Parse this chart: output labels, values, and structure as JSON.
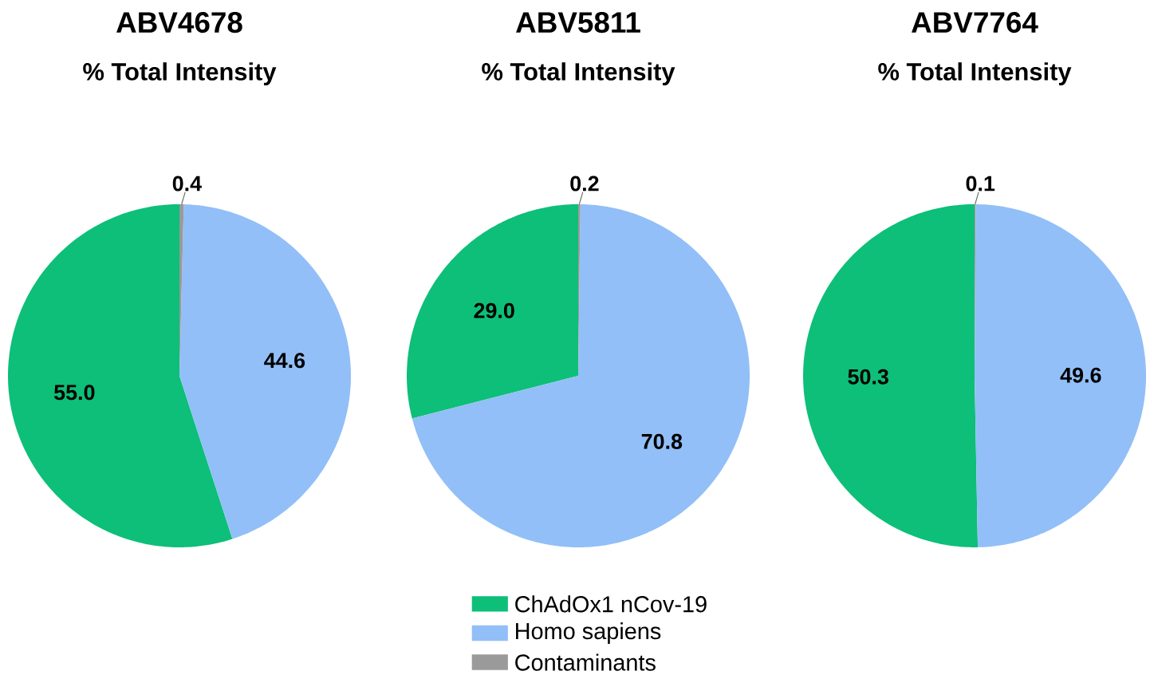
{
  "chart_data": [
    {
      "type": "pie",
      "title": "ABV4678",
      "subtitle": "% Total Intensity",
      "categories": [
        null,
        null,
        null
      ],
      "values": [
        55.0,
        44.6,
        0.4
      ],
      "value_labels": [
        "55.0",
        "44.6",
        "0.4"
      ],
      "colors": [
        "#0dbf78",
        "#92bff7",
        "#9a9a9a"
      ]
    },
    {
      "type": "pie",
      "title": "ABV5811",
      "subtitle": "% Total Intensity",
      "categories": [
        "ChAdOx1 nCov-19",
        "Homo sapiens",
        "Contaminants"
      ],
      "values": [
        29.0,
        70.8,
        0.2
      ],
      "value_labels": [
        "29.0",
        "70.8",
        "0.2"
      ],
      "colors": [
        "#0dbf78",
        "#92bff7",
        "#9a9a9a"
      ],
      "legend": "bottom"
    },
    {
      "type": "pie",
      "title": "ABV7764",
      "subtitle": "% Total Intensity",
      "categories": [
        null,
        null,
        null
      ],
      "values": [
        50.3,
        49.6,
        0.1
      ],
      "value_labels": [
        "50.3",
        "49.6",
        "0.1"
      ],
      "colors": [
        "#0dbf78",
        "#92bff7",
        "#9a9a9a"
      ]
    }
  ]
}
